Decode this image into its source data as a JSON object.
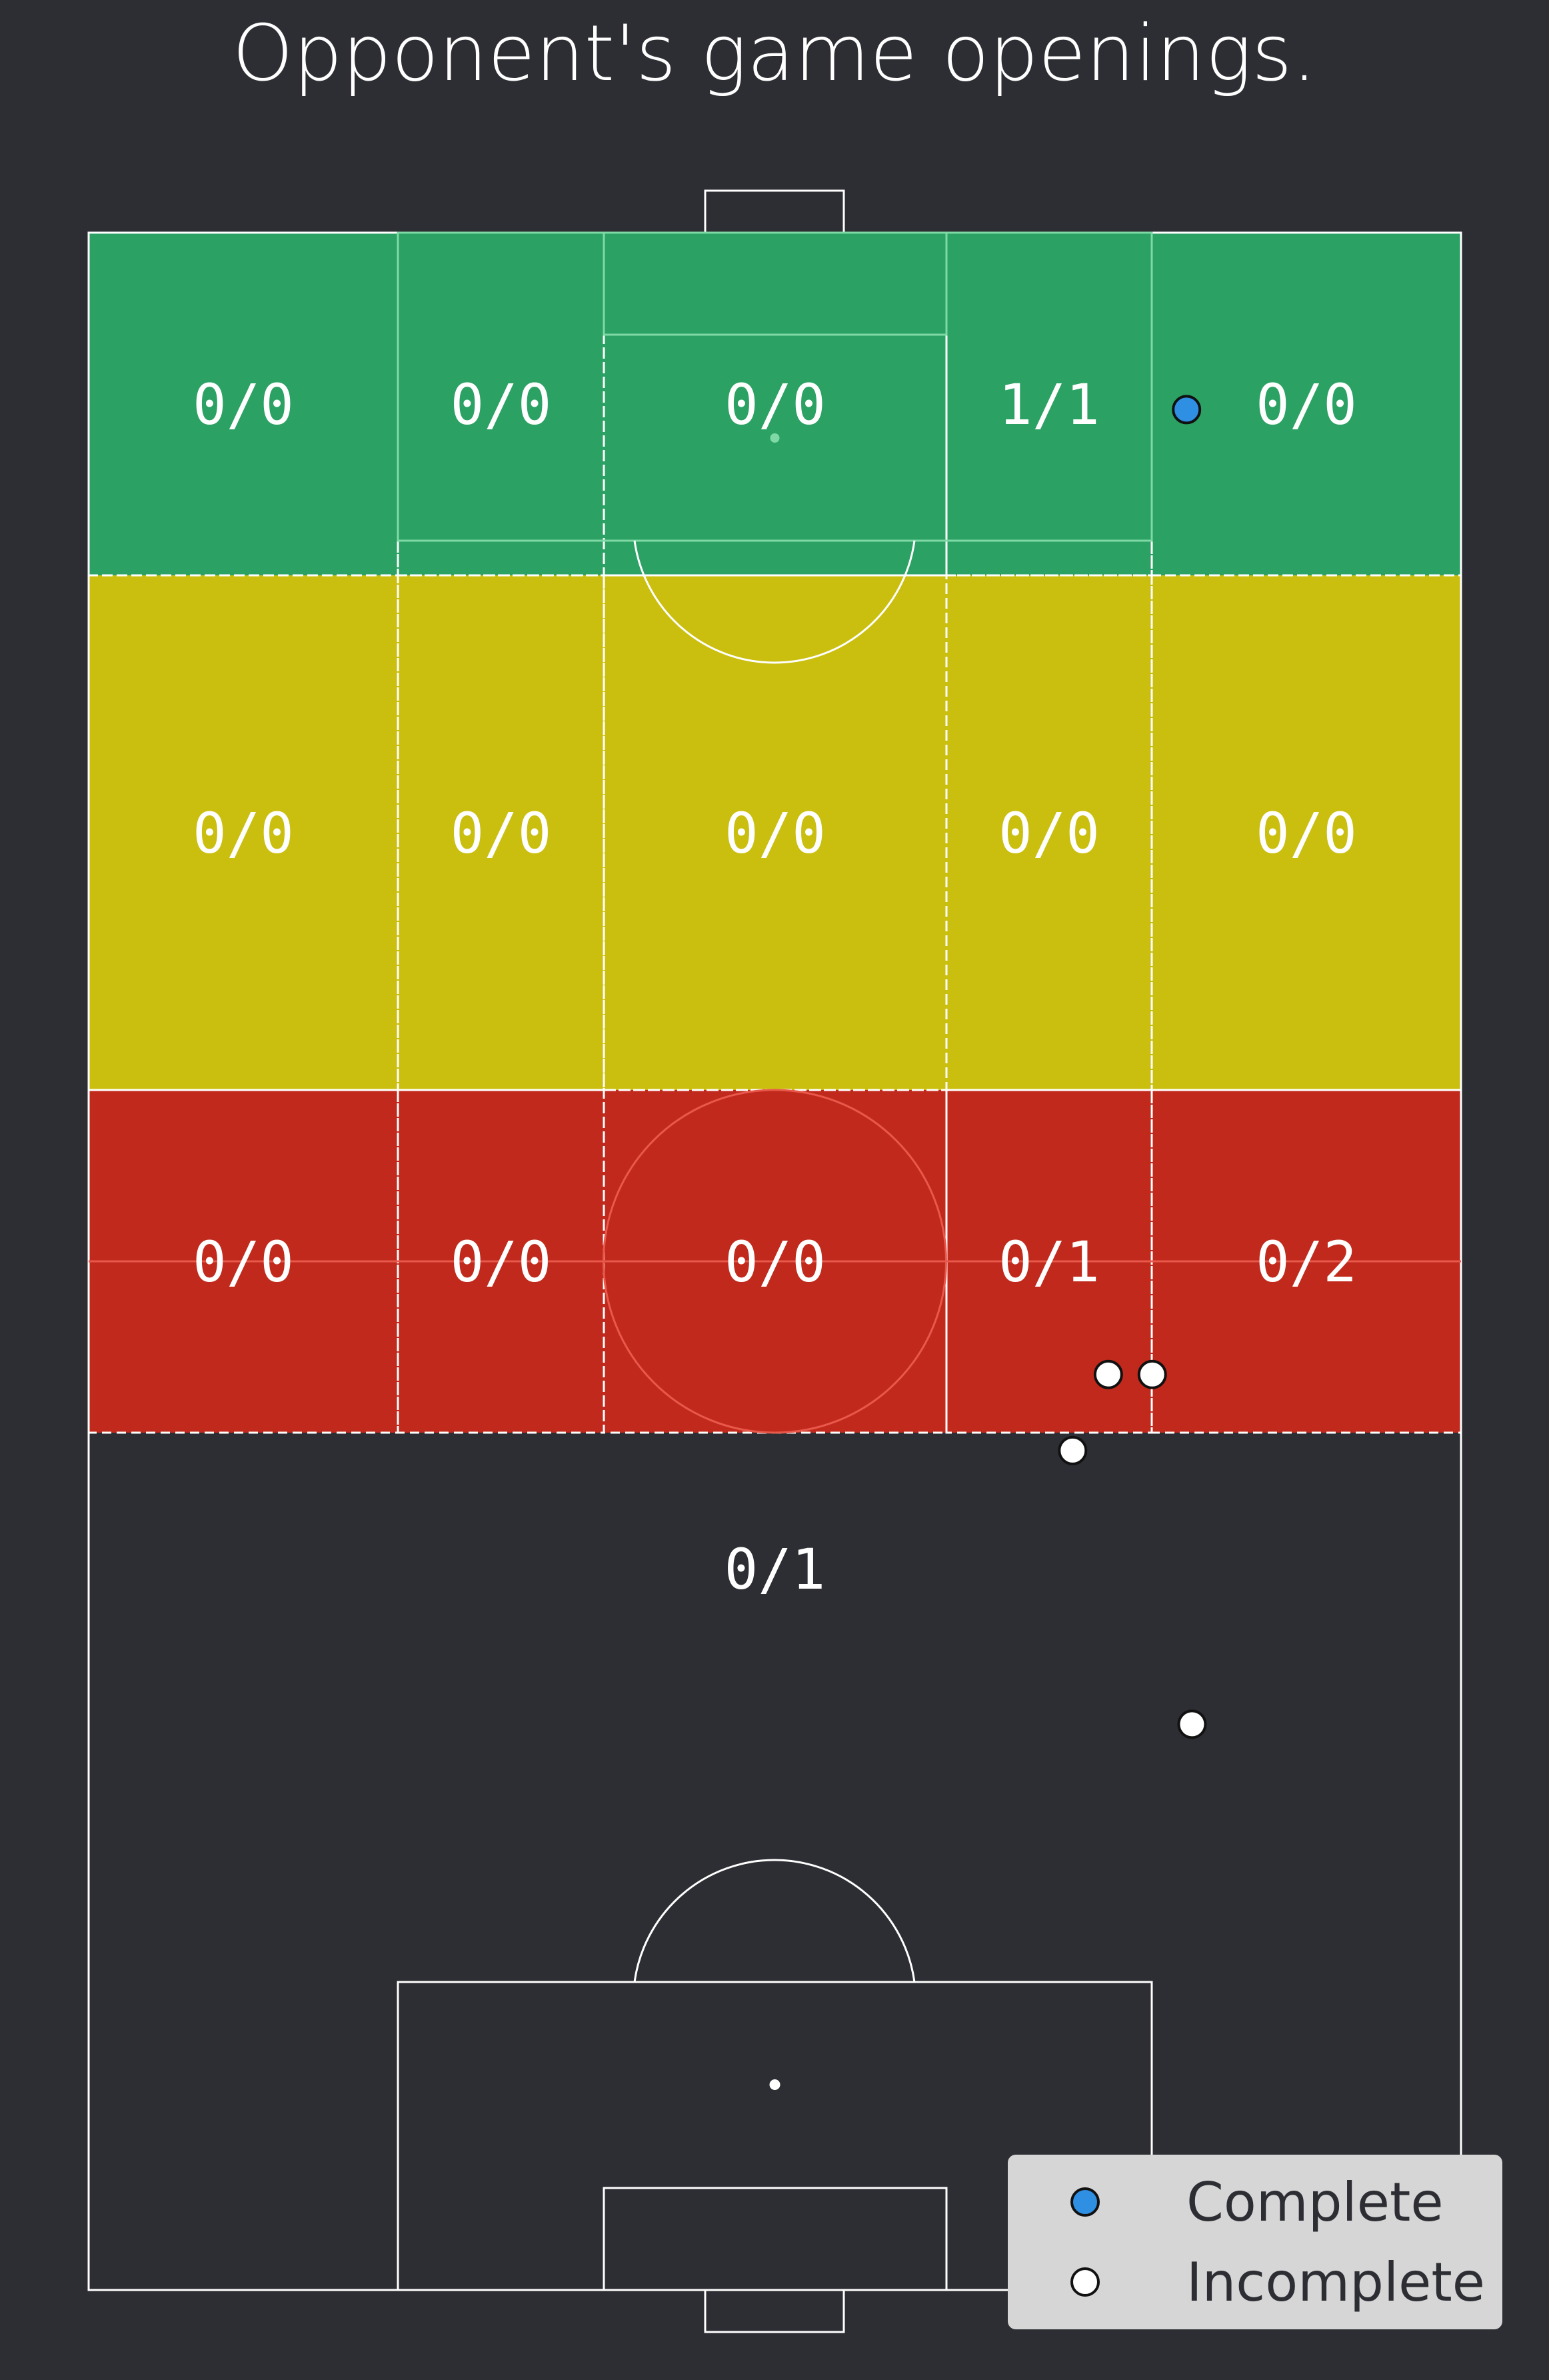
{
  "chart_data": {
    "type": "scatter",
    "title": "Opponent's game openings.",
    "colors": {
      "background": "#2d2e33",
      "final_third": "#2ba163",
      "middle_third": "#cabe0f",
      "defensive_third": "#c0291c",
      "complete_marker": "#2f8fe3",
      "incomplete_marker": "#ffffff",
      "lines": "#ffffff"
    },
    "zones": {
      "rows": [
        "final_third",
        "middle_third",
        "defensive_third"
      ],
      "labels": [
        [
          "0/0",
          "0/0",
          "0/0",
          "1/1",
          "0/0"
        ],
        [
          "0/0",
          "0/0",
          "0/0",
          "0/0",
          "0/0"
        ],
        [
          "0/0",
          "0/0",
          "0/0",
          "0/1",
          "0/2"
        ]
      ],
      "own_half_label": "0/1"
    },
    "series": [
      {
        "name": "Complete",
        "points": [
          {
            "x": 80.0,
            "y": 91.4
          }
        ]
      },
      {
        "name": "Incomplete",
        "points": [
          {
            "x": 80.4,
            "y": 27.5
          },
          {
            "x": 74.3,
            "y": 44.5
          },
          {
            "x": 77.5,
            "y": 44.5
          },
          {
            "x": 71.7,
            "y": 40.8
          }
        ]
      }
    ],
    "legend": {
      "position": "bottom-right",
      "entries": [
        "Complete",
        "Incomplete"
      ]
    }
  }
}
